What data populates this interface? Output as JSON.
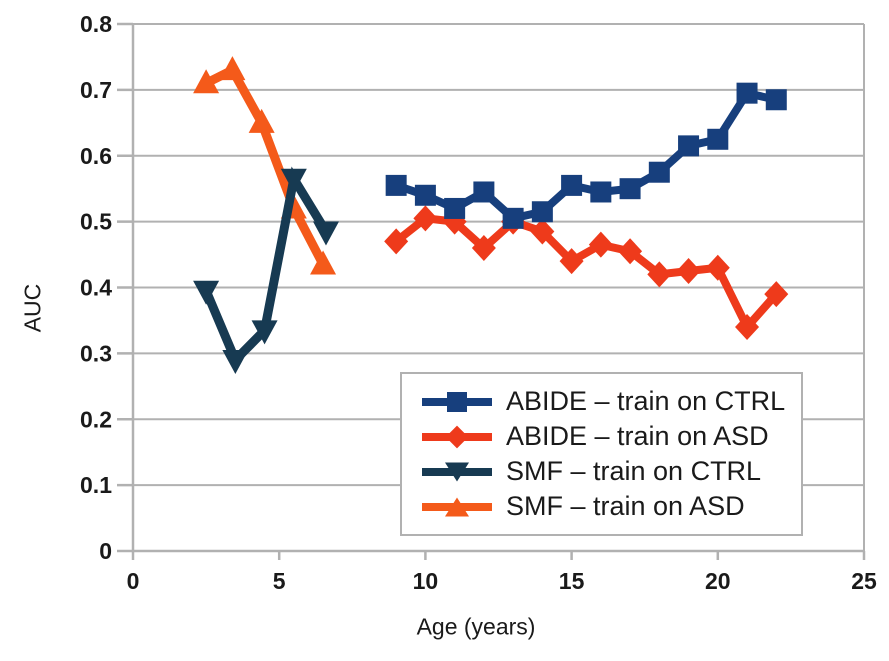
{
  "chart_data": {
    "type": "line",
    "title": "",
    "xlabel": "Age (years)",
    "ylabel": "AUC",
    "xlim": [
      0,
      25
    ],
    "ylim": [
      0,
      0.8
    ],
    "x_ticks": [
      0,
      5,
      10,
      15,
      20,
      25
    ],
    "y_ticks": [
      0,
      0.1,
      0.2,
      0.3,
      0.4,
      0.5,
      0.6,
      0.7,
      0.8
    ],
    "grid": "horizontal",
    "grid_color": "#b1b1b1",
    "axis_color": "#b1b1b1",
    "text_color": "#1a1a1a",
    "legend_position": "inside-bottom-right",
    "series": [
      {
        "name": "ABIDE – train on CTRL",
        "color": "#173f7d",
        "marker": "square",
        "line_width": 8,
        "x": [
          9,
          10,
          11,
          12,
          13,
          14,
          15,
          16,
          17,
          18,
          19,
          20,
          21,
          22
        ],
        "y": [
          0.555,
          0.54,
          0.52,
          0.545,
          0.505,
          0.515,
          0.555,
          0.545,
          0.55,
          0.575,
          0.615,
          0.625,
          0.695,
          0.685
        ]
      },
      {
        "name": "ABIDE – train on ASD",
        "color": "#ee3a1b",
        "marker": "diamond",
        "line_width": 8,
        "x": [
          9,
          10,
          11,
          12,
          13,
          14,
          15,
          16,
          17,
          18,
          19,
          20,
          21,
          22
        ],
        "y": [
          0.47,
          0.505,
          0.5,
          0.46,
          0.5,
          0.485,
          0.44,
          0.465,
          0.455,
          0.42,
          0.425,
          0.43,
          0.34,
          0.39
        ]
      },
      {
        "name": "SMF – train on CTRL",
        "color": "#173a52",
        "marker": "triangle-down",
        "line_width": 9,
        "x": [
          2.5,
          3.5,
          4.5,
          5.5,
          6.6
        ],
        "y": [
          0.395,
          0.29,
          0.335,
          0.565,
          0.485
        ]
      },
      {
        "name": "SMF – train on ASD",
        "color": "#f45a1a",
        "marker": "triangle-up",
        "line_width": 9,
        "x": [
          2.5,
          3.4,
          4.4,
          5.5,
          6.5
        ],
        "y": [
          0.71,
          0.73,
          0.65,
          0.52,
          0.435
        ]
      }
    ]
  }
}
